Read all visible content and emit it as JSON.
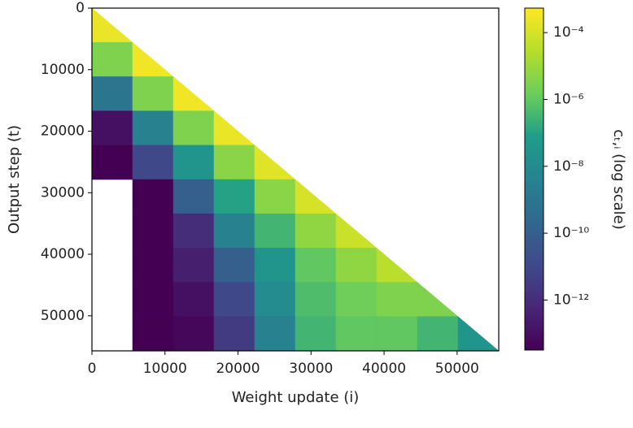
{
  "chart_data": {
    "type": "heatmap",
    "xlabel": "Weight update (i)",
    "ylabel": "Output step (t)",
    "colorbar_label": "cₜ,ᵢ (log scale)",
    "colormap": "viridis",
    "x_edges": [
      0,
      5570,
      11140,
      16710,
      22280,
      27850,
      33420,
      38990,
      44560,
      50130,
      55700
    ],
    "y_edges": [
      0,
      5570,
      11140,
      16710,
      22280,
      27850,
      33420,
      38990,
      44560,
      50130,
      55700
    ],
    "xlim": [
      0,
      55700
    ],
    "ylim": [
      55700,
      0
    ],
    "xticks": [
      0,
      10000,
      20000,
      30000,
      40000,
      50000
    ],
    "yticks": [
      0,
      10000,
      20000,
      30000,
      40000,
      50000
    ],
    "clim": [
      3.2e-14,
      0.00054
    ],
    "color_log_scale": true,
    "cticks": [
      {
        "value": 0.0001,
        "label": "10⁻⁴"
      },
      {
        "value": 1e-06,
        "label": "10⁻⁶"
      },
      {
        "value": 1e-08,
        "label": "10⁻⁸"
      },
      {
        "value": 1e-10,
        "label": "10⁻¹⁰"
      },
      {
        "value": 1e-12,
        "label": "10⁻¹²"
      }
    ],
    "z": [
      [
        0.00025,
        null,
        null,
        null,
        null,
        null,
        null,
        null,
        null,
        null
      ],
      [
        3.2e-06,
        0.00032,
        null,
        null,
        null,
        null,
        null,
        null,
        null,
        null
      ],
      [
        1e-09,
        3.2e-06,
        0.00032,
        null,
        null,
        null,
        null,
        null,
        null,
        null
      ],
      [
        1e-13,
        3.2e-09,
        3.2e-06,
        0.00025,
        null,
        null,
        null,
        null,
        null,
        null
      ],
      [
        3.2e-14,
        1e-11,
        3.2e-08,
        5e-06,
        0.00016,
        null,
        null,
        null,
        null,
        null
      ],
      [
        null,
        3.2e-14,
        1e-10,
        1e-07,
        5e-06,
        0.0001,
        null,
        null,
        null,
        null
      ],
      [
        null,
        3.2e-14,
        1e-12,
        3.2e-09,
        3.2e-07,
        6.3e-06,
        6.3e-05,
        null,
        null,
        null
      ],
      [
        null,
        3.2e-14,
        3.2e-13,
        1e-10,
        3.2e-08,
        1e-06,
        6.3e-06,
        3.2e-05,
        null,
        null
      ],
      [
        null,
        3.2e-14,
        1e-13,
        1e-11,
        1e-08,
        5e-07,
        1.6e-06,
        3.2e-06,
        3.2e-06,
        null
      ],
      [
        null,
        3.2e-14,
        5e-14,
        3.2e-12,
        3.2e-09,
        3.2e-07,
        1e-06,
        1e-06,
        3.2e-07,
        3.2e-08
      ]
    ]
  }
}
